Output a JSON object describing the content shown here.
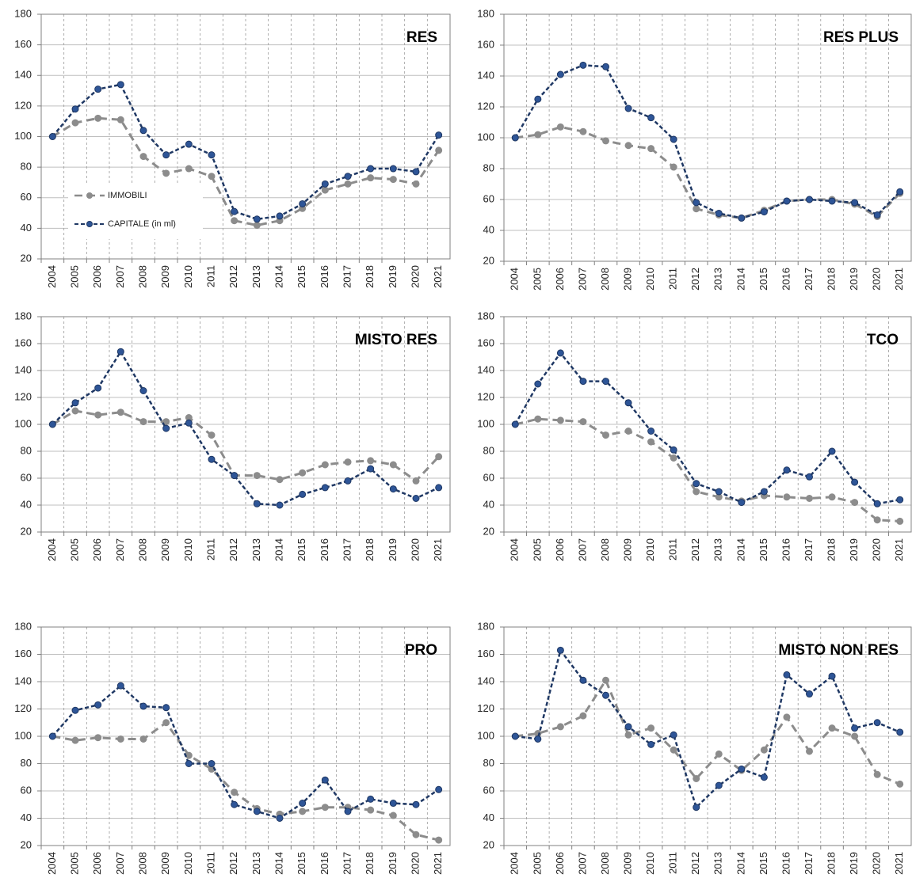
{
  "chart_data": [
    {
      "type": "line",
      "title": "RES",
      "categories": [
        "2004",
        "2005",
        "2006",
        "2007",
        "2008",
        "2009",
        "2010",
        "2011",
        "2012",
        "2013",
        "2014",
        "2015",
        "2016",
        "2017",
        "2018",
        "2019",
        "2020",
        "2021"
      ],
      "series": [
        {
          "name": "IMMOBILI",
          "color": "#8c8c8c",
          "values": [
            100,
            109,
            112,
            111,
            87,
            76,
            79,
            74,
            45,
            42,
            45,
            53,
            65,
            69,
            73,
            72,
            69,
            91
          ]
        },
        {
          "name": "CAPITALE (in ml)",
          "color": "#1f3864",
          "values": [
            100,
            118,
            131,
            134,
            104,
            88,
            95,
            88,
            51,
            46,
            48,
            56,
            69,
            74,
            79,
            79,
            77,
            101
          ]
        }
      ],
      "ylim": [
        20,
        180
      ],
      "yticks": [
        20,
        40,
        60,
        80,
        100,
        120,
        140,
        160,
        180
      ],
      "grid": true,
      "legend": "lower left"
    },
    {
      "type": "line",
      "title": "RES PLUS",
      "categories": [
        "2004",
        "2005",
        "2006",
        "2007",
        "2008",
        "2009",
        "2010",
        "2011",
        "2012",
        "2013",
        "2014",
        "2015",
        "2016",
        "2017",
        "2018",
        "2019",
        "2020",
        "2021"
      ],
      "series": [
        {
          "color": "#8c8c8c",
          "values": [
            100,
            102,
            107,
            104,
            98,
            95,
            93,
            81,
            54,
            50,
            48,
            53,
            59,
            60,
            60,
            57,
            49,
            64
          ]
        },
        {
          "color": "#1f3864",
          "values": [
            100,
            125,
            141,
            147,
            146,
            119,
            113,
            99,
            58,
            51,
            48,
            52,
            59,
            60,
            59,
            58,
            50,
            65
          ]
        }
      ],
      "ylim": [
        20,
        180
      ],
      "yticks": [
        20,
        40,
        60,
        80,
        100,
        120,
        140,
        160,
        180
      ],
      "grid": true
    },
    {
      "type": "line",
      "title": "MISTO RES",
      "categories": [
        "2004",
        "2005",
        "2006",
        "2007",
        "2008",
        "2009",
        "2010",
        "2011",
        "2012",
        "2013",
        "2014",
        "2015",
        "2016",
        "2017",
        "2018",
        "2019",
        "2020",
        "2021"
      ],
      "series": [
        {
          "color": "#8c8c8c",
          "values": [
            100,
            110,
            107,
            109,
            102,
            102,
            105,
            92,
            62,
            62,
            59,
            64,
            70,
            72,
            73,
            70,
            58,
            76
          ]
        },
        {
          "color": "#1f3864",
          "values": [
            100,
            116,
            127,
            154,
            125,
            97,
            101,
            74,
            62,
            41,
            40,
            48,
            53,
            58,
            67,
            52,
            45,
            53
          ]
        }
      ],
      "ylim": [
        20,
        180
      ],
      "yticks": [
        20,
        40,
        60,
        80,
        100,
        120,
        140,
        160,
        180
      ],
      "grid": true
    },
    {
      "type": "line",
      "title": "TCO",
      "categories": [
        "2004",
        "2005",
        "2006",
        "2007",
        "2008",
        "2009",
        "2010",
        "2011",
        "2012",
        "2013",
        "2014",
        "2015",
        "2016",
        "2017",
        "2018",
        "2019",
        "2020",
        "2021"
      ],
      "series": [
        {
          "color": "#8c8c8c",
          "values": [
            100,
            104,
            103,
            102,
            92,
            95,
            87,
            75,
            50,
            46,
            43,
            47,
            46,
            45,
            46,
            42,
            29,
            28
          ]
        },
        {
          "color": "#1f3864",
          "values": [
            100,
            130,
            153,
            132,
            132,
            116,
            95,
            81,
            56,
            50,
            42,
            50,
            66,
            61,
            80,
            57,
            41,
            44
          ]
        }
      ],
      "ylim": [
        20,
        180
      ],
      "yticks": [
        20,
        40,
        60,
        80,
        100,
        120,
        140,
        160,
        180
      ],
      "grid": true
    },
    {
      "type": "line",
      "title": "PRO",
      "categories": [
        "2004",
        "2005",
        "2006",
        "2007",
        "2008",
        "2009",
        "2010",
        "2011",
        "2012",
        "2013",
        "2014",
        "2015",
        "2016",
        "2017",
        "2018",
        "2019",
        "2020",
        "2021"
      ],
      "series": [
        {
          "color": "#8c8c8c",
          "values": [
            100,
            97,
            99,
            98,
            98,
            110,
            86,
            76,
            59,
            47,
            43,
            45,
            48,
            48,
            46,
            42,
            28,
            24
          ]
        },
        {
          "color": "#1f3864",
          "values": [
            100,
            119,
            123,
            137,
            122,
            121,
            80,
            80,
            50,
            45,
            40,
            51,
            68,
            45,
            54,
            51,
            50,
            61
          ]
        }
      ],
      "ylim": [
        20,
        180
      ],
      "yticks": [
        20,
        40,
        60,
        80,
        100,
        120,
        140,
        160,
        180
      ],
      "grid": true
    },
    {
      "type": "line",
      "title": "MISTO NON RES",
      "categories": [
        "2004",
        "2005",
        "2006",
        "2007",
        "2008",
        "2009",
        "2010",
        "2011",
        "2012",
        "2013",
        "2014",
        "2015",
        "2016",
        "2017",
        "2018",
        "2019",
        "2020",
        "2021"
      ],
      "series": [
        {
          "color": "#8c8c8c",
          "values": [
            100,
            102,
            107,
            115,
            141,
            101,
            106,
            90,
            69,
            87,
            75,
            90,
            114,
            89,
            106,
            100,
            72,
            65
          ]
        },
        {
          "color": "#1f3864",
          "values": [
            100,
            98,
            163,
            141,
            130,
            107,
            94,
            101,
            48,
            64,
            76,
            70,
            145,
            131,
            144,
            106,
            110,
            103
          ]
        }
      ],
      "ylim": [
        20,
        180
      ],
      "yticks": [
        20,
        40,
        60,
        80,
        100,
        120,
        140,
        160,
        180
      ],
      "grid": true
    }
  ]
}
